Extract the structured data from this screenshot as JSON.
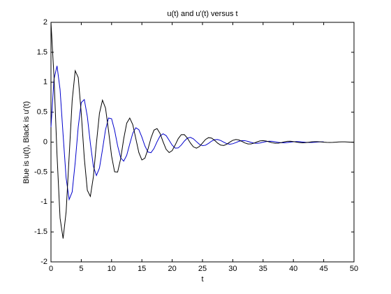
{
  "chart_data": {
    "type": "line",
    "title": "u(t) and u'(t) versus t",
    "xlabel": "t",
    "ylabel": "Blue is u(t), Black is u'(t)",
    "x": [
      0,
      0.5,
      1,
      1.5,
      2,
      2.5,
      3,
      3.5,
      4,
      4.5,
      5,
      5.5,
      6,
      6.5,
      7,
      7.5,
      8,
      8.5,
      9,
      9.5,
      10,
      10.5,
      11,
      11.5,
      12,
      12.5,
      13,
      13.5,
      14,
      14.5,
      15,
      15.5,
      16,
      16.5,
      17,
      17.5,
      18,
      18.5,
      19,
      19.5,
      20,
      20.5,
      21,
      21.5,
      22,
      22.5,
      23,
      23.5,
      24,
      24.5,
      25,
      25.5,
      26,
      26.5,
      27,
      27.5,
      28,
      28.5,
      29,
      29.5,
      30,
      30.5,
      31,
      31.5,
      32,
      32.5,
      33,
      33.5,
      34,
      34.5,
      35,
      35.5,
      36,
      36.5,
      37,
      37.5,
      38,
      38.5,
      39,
      39.5,
      40,
      40.5,
      41,
      41.5,
      42,
      42.5,
      43,
      43.5,
      44,
      44.5,
      45,
      45.5,
      46,
      46.5,
      47,
      47.5,
      48,
      48.5,
      49,
      49.5,
      50
    ],
    "series": [
      {
        "color": "#0000cc",
        "values": [
          0.25,
          1.052,
          1.273,
          0.879,
          0.125,
          -0.598,
          -0.958,
          -0.832,
          -0.337,
          0.255,
          0.66,
          0.711,
          0.428,
          -0.02,
          -0.406,
          -0.558,
          -0.434,
          -0.125,
          0.206,
          0.402,
          0.39,
          0.198,
          -0.062,
          -0.263,
          -0.318,
          -0.22,
          -0.031,
          0.15,
          0.239,
          0.208,
          0.084,
          -0.064,
          -0.165,
          -0.177,
          -0.107,
          0.005,
          0.102,
          0.139,
          0.109,
          0.031,
          -0.051,
          -0.101,
          -0.097,
          -0.049,
          0.016,
          0.066,
          0.08,
          0.055,
          0.008,
          -0.037,
          -0.06,
          -0.052,
          -0.021,
          0.016,
          0.041,
          0.044,
          0.027,
          -0.001,
          -0.025,
          -0.035,
          -0.027,
          -0.008,
          0.013,
          0.025,
          0.024,
          0.012,
          -0.004,
          -0.016,
          -0.02,
          -0.014,
          -0.002,
          0.009,
          0.015,
          0.013,
          0.005,
          -0.004,
          -0.01,
          -0.011,
          -0.007,
          0,
          0.006,
          0.009,
          0.007,
          0.002,
          -0.003,
          -0.006,
          -0.006,
          -0.003,
          0.001,
          0.004,
          0.005,
          null,
          null,
          null,
          null,
          null,
          null,
          null,
          null,
          null,
          null
        ]
      },
      {
        "color": "#000000",
        "values": [
          2.0,
          1.089,
          -0.217,
          -1.269,
          -1.61,
          -1.166,
          -0.236,
          0.697,
          1.192,
          1.079,
          0.481,
          -0.268,
          -0.805,
          -0.907,
          -0.578,
          -0.019,
          0.481,
          0.7,
          0.569,
          0.19,
          -0.231,
          -0.496,
          -0.5,
          -0.278,
          0.054,
          0.317,
          0.402,
          0.291,
          0.059,
          -0.174,
          -0.298,
          -0.269,
          -0.12,
          0.067,
          0.201,
          0.226,
          0.144,
          0.005,
          -0.12,
          -0.175,
          -0.142,
          -0.047,
          0.058,
          0.124,
          0.125,
          0.068,
          -0.014,
          -0.079,
          -0.101,
          -0.073,
          -0.015,
          0.044,
          0.075,
          0.067,
          0.03,
          -0.017,
          -0.05,
          -0.057,
          -0.036,
          -0.001,
          0.03,
          0.044,
          0.036,
          0.012,
          -0.014,
          -0.031,
          -0.031,
          -0.017,
          0.003,
          0.02,
          0.025,
          0.018,
          0.004,
          -0.011,
          -0.019,
          -0.017,
          -0.008,
          0.004,
          0.013,
          0.014,
          0.009,
          0,
          -0.008,
          -0.011,
          -0.009,
          -0.003,
          0.004,
          0.008,
          0.008,
          0.004,
          -0.001,
          -0.005,
          -0.006,
          -0.005,
          -0.001,
          0.003,
          0.005,
          0.004,
          0.002,
          -0.001,
          -0.003
        ]
      }
    ],
    "xlim": [
      0,
      50
    ],
    "xticks": [
      0,
      5,
      10,
      15,
      20,
      25,
      30,
      35,
      40,
      45,
      50
    ],
    "ylim": [
      -2,
      2
    ],
    "yticks": [
      -2,
      -1.5,
      -1,
      -0.5,
      0,
      0.5,
      1,
      1.5,
      2
    ]
  }
}
